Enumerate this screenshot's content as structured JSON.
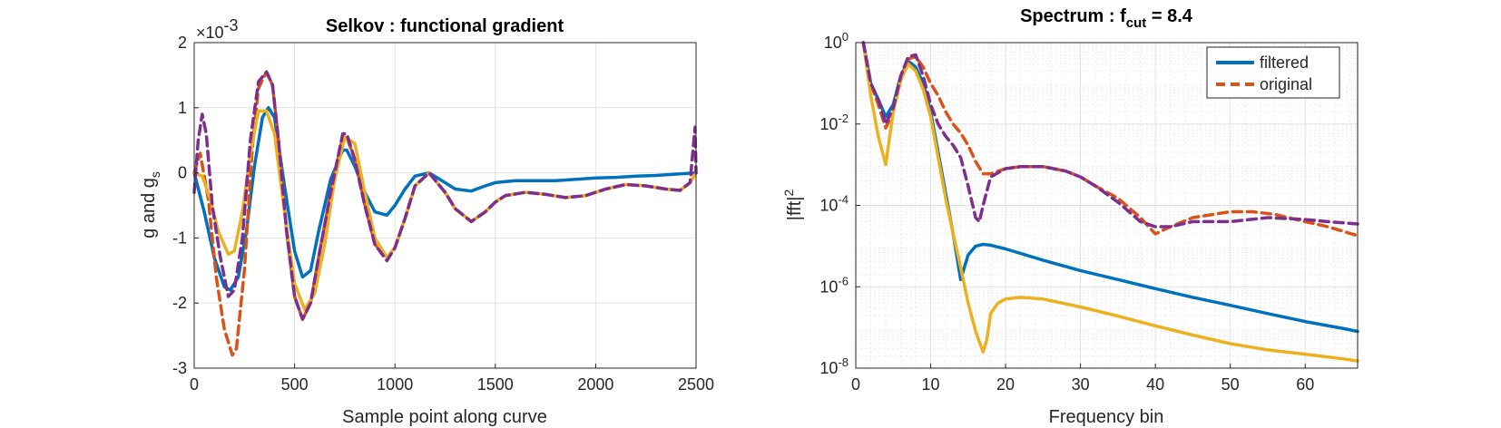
{
  "colors": {
    "blue": "#0072bd",
    "orange": "#d95319",
    "yellow": "#edb120",
    "purple": "#7e2f8e"
  },
  "chart_data": [
    {
      "type": "line",
      "title": "Selkov : functional gradient",
      "xlabel": "Sample point along curve",
      "ylabel_main": "g and g",
      "ylabel_sub": "s",
      "exponent_prefix": "×10",
      "exponent_power": "-3",
      "xlim": [
        0,
        2500
      ],
      "ylim": [
        -3,
        2
      ],
      "xticks": [
        0,
        500,
        1000,
        1500,
        2000,
        2500
      ],
      "xticklabels": [
        "0",
        "500",
        "1000",
        "1500",
        "2000",
        "2500"
      ],
      "yticks": [
        -3,
        -2,
        -1,
        0,
        1,
        2
      ],
      "yticklabels": [
        "-3",
        "-2",
        "-1",
        "0",
        "1",
        "2"
      ],
      "grid": true,
      "series": [
        {
          "color": "#0072bd",
          "style": "solid",
          "x": [
            0,
            50,
            100,
            150,
            180,
            220,
            260,
            300,
            340,
            370,
            400,
            450,
            500,
            540,
            580,
            620,
            680,
            740,
            760,
            800,
            850,
            900,
            960,
            1000,
            1050,
            1100,
            1170,
            1250,
            1300,
            1380,
            1450,
            1500,
            1600,
            1700,
            1800,
            1900,
            2000,
            2100,
            2200,
            2300,
            2400,
            2500
          ],
          "y": [
            0,
            -0.6,
            -1.3,
            -1.75,
            -1.8,
            -1.6,
            -0.9,
            0.1,
            0.85,
            1.0,
            0.85,
            -0.2,
            -1.2,
            -1.6,
            -1.5,
            -0.9,
            -0.1,
            0.35,
            0.35,
            0.1,
            -0.3,
            -0.6,
            -0.65,
            -0.5,
            -0.25,
            -0.05,
            0.0,
            -0.15,
            -0.25,
            -0.28,
            -0.2,
            -0.15,
            -0.12,
            -0.12,
            -0.12,
            -0.1,
            -0.08,
            -0.07,
            -0.05,
            -0.04,
            -0.02,
            0.0
          ]
        },
        {
          "color": "#d95319",
          "style": "dashed",
          "x": [
            0,
            30,
            70,
            110,
            150,
            190,
            210,
            250,
            290,
            320,
            360,
            390,
            420,
            460,
            500,
            540,
            580,
            620,
            680,
            740,
            760,
            800,
            850,
            900,
            960,
            1000,
            1050,
            1100,
            1170,
            1250,
            1300,
            1380,
            1450,
            1500,
            1550,
            1650,
            1750,
            1850,
            1950,
            2050,
            2150,
            2250,
            2350,
            2420,
            2470,
            2500
          ],
          "y": [
            0,
            0.3,
            -0.4,
            -1.6,
            -2.4,
            -2.8,
            -2.7,
            -1.5,
            0.4,
            1.3,
            1.55,
            1.35,
            0.5,
            -0.9,
            -1.9,
            -2.25,
            -2.0,
            -1.3,
            -0.3,
            0.55,
            0.55,
            0.2,
            -0.5,
            -1.1,
            -1.3,
            -1.15,
            -0.7,
            -0.2,
            0.0,
            -0.3,
            -0.55,
            -0.75,
            -0.6,
            -0.45,
            -0.35,
            -0.3,
            -0.33,
            -0.38,
            -0.35,
            -0.25,
            -0.18,
            -0.2,
            -0.25,
            -0.27,
            -0.15,
            0.0
          ]
        },
        {
          "color": "#edb120",
          "style": "solid",
          "x": [
            0,
            40,
            80,
            120,
            170,
            200,
            240,
            280,
            320,
            360,
            400,
            450,
            500,
            550,
            600,
            650,
            700,
            750,
            800,
            850,
            900,
            960,
            1000,
            1050,
            1100,
            1170,
            1250,
            1300,
            1380,
            1450,
            1500,
            1550,
            1650,
            1750,
            1850,
            1950,
            2050,
            2150,
            2250,
            2350,
            2420,
            2470,
            2500
          ],
          "y": [
            0,
            -0.05,
            -0.4,
            -0.9,
            -1.25,
            -1.2,
            -0.6,
            0.3,
            0.95,
            0.95,
            0.6,
            -0.6,
            -1.7,
            -2.1,
            -1.85,
            -1.1,
            -0.1,
            0.55,
            0.45,
            -0.3,
            -1.0,
            -1.3,
            -1.15,
            -0.7,
            -0.2,
            0.0,
            -0.3,
            -0.55,
            -0.75,
            -0.6,
            -0.45,
            -0.35,
            -0.3,
            -0.33,
            -0.38,
            -0.35,
            -0.25,
            -0.18,
            -0.2,
            -0.25,
            -0.27,
            -0.15,
            0.0
          ]
        },
        {
          "color": "#7e2f8e",
          "style": "dashed",
          "x": [
            0,
            20,
            40,
            60,
            90,
            130,
            170,
            200,
            240,
            280,
            320,
            360,
            390,
            420,
            460,
            500,
            540,
            580,
            620,
            680,
            740,
            760,
            800,
            850,
            900,
            960,
            1000,
            1050,
            1100,
            1170,
            1250,
            1300,
            1380,
            1450,
            1500,
            1550,
            1650,
            1750,
            1850,
            1950,
            2050,
            2150,
            2250,
            2350,
            2420,
            2470,
            2495,
            2500
          ],
          "y": [
            -0.3,
            0.5,
            0.9,
            0.6,
            -0.5,
            -1.3,
            -1.9,
            -1.8,
            -1.0,
            0.5,
            1.4,
            1.55,
            1.35,
            0.5,
            -0.9,
            -1.9,
            -2.25,
            -2.0,
            -1.3,
            -0.3,
            0.6,
            0.6,
            0.2,
            -0.5,
            -1.1,
            -1.35,
            -1.15,
            -0.7,
            -0.2,
            0.0,
            -0.3,
            -0.55,
            -0.75,
            -0.6,
            -0.45,
            -0.35,
            -0.3,
            -0.33,
            -0.38,
            -0.35,
            -0.25,
            -0.18,
            -0.2,
            -0.25,
            -0.27,
            -0.15,
            0.7,
            0.0
          ]
        }
      ]
    },
    {
      "type": "line",
      "title_main": "Spectrum : f",
      "title_sub": "cut",
      "title_suffix": " = 8.4",
      "xlabel": "Frequency bin",
      "ylabel_main": "|fft|",
      "ylabel_sup": "2",
      "xlim": [
        0,
        67
      ],
      "ylim_log10": [
        -8,
        0
      ],
      "yscale": "log",
      "xticks": [
        0,
        10,
        20,
        30,
        40,
        50,
        60
      ],
      "xticklabels": [
        "0",
        "10",
        "20",
        "30",
        "40",
        "50",
        "60"
      ],
      "yticks_log10": [
        -8,
        -6,
        -4,
        -2,
        0
      ],
      "ytick_base": "10",
      "ytick_exponents": [
        "-8",
        "-6",
        "-4",
        "-2",
        "0"
      ],
      "grid": true,
      "legend": {
        "position": "top-right",
        "entries": [
          "filtered",
          "original"
        ]
      },
      "series": [
        {
          "name": "filtered",
          "color": "#0072bd",
          "style": "solid",
          "x": [
            1,
            2,
            3,
            4,
            5,
            6,
            7,
            7.5,
            8,
            9,
            10,
            11,
            12,
            13,
            14,
            15,
            16,
            17,
            18,
            20,
            25,
            30,
            35,
            40,
            45,
            50,
            55,
            60,
            65,
            67
          ],
          "y": [
            1.0,
            0.1,
            0.04,
            0.015,
            0.03,
            0.15,
            0.35,
            0.3,
            0.25,
            0.1,
            0.02,
            0.002,
            0.0002,
            2e-05,
            1.5e-06,
            6e-06,
            1e-05,
            1.1e-05,
            1.05e-05,
            8.5e-06,
            4.5e-06,
            2.5e-06,
            1.5e-06,
            9e-07,
            5.5e-07,
            3.5e-07,
            2.2e-07,
            1.4e-07,
            9.5e-08,
            8e-08
          ]
        },
        {
          "name": "original",
          "color": "#d95319",
          "style": "dashed",
          "x": [
            1,
            2,
            3,
            4,
            5,
            6,
            7,
            8,
            9,
            10,
            11,
            12,
            13,
            14,
            15,
            16,
            17,
            18,
            20,
            22,
            25,
            28,
            30,
            32,
            35,
            38,
            40,
            42,
            45,
            50,
            53,
            56,
            60,
            63,
            67
          ],
          "y": [
            1.0,
            0.1,
            0.03,
            0.008,
            0.02,
            0.12,
            0.4,
            0.45,
            0.25,
            0.1,
            0.05,
            0.02,
            0.01,
            0.006,
            0.003,
            0.0012,
            0.0006,
            0.0006,
            0.0008,
            0.0009,
            0.0009,
            0.0007,
            0.0005,
            0.0003,
            0.00015,
            5e-05,
            2e-05,
            3e-05,
            5e-05,
            7e-05,
            7e-05,
            6e-05,
            4e-05,
            3e-05,
            1.8e-05
          ]
        },
        {
          "color": "#edb120",
          "style": "solid",
          "x": [
            1,
            2,
            3,
            4,
            5,
            6,
            7,
            8,
            9,
            10,
            11,
            12,
            13,
            14,
            15,
            16,
            17,
            17.5,
            18,
            19,
            20,
            22,
            25,
            30,
            35,
            40,
            45,
            50,
            55,
            60,
            65,
            67
          ],
          "y": [
            1.0,
            0.05,
            0.005,
            0.001,
            0.02,
            0.12,
            0.3,
            0.2,
            0.07,
            0.015,
            0.0015,
            0.00015,
            2e-05,
            3e-06,
            4e-07,
            8e-08,
            2.5e-08,
            5e-08,
            2.2e-07,
            4e-07,
            5e-07,
            5.5e-07,
            5e-07,
            3.2e-07,
            1.9e-07,
            1.1e-07,
            6.5e-08,
            4e-08,
            2.8e-08,
            2.2e-08,
            1.7e-08,
            1.5e-08
          ]
        },
        {
          "color": "#7e2f8e",
          "style": "dashed",
          "x": [
            1,
            2,
            3,
            4,
            5,
            6,
            7,
            8,
            9,
            10,
            11,
            12,
            13,
            14,
            15,
            16,
            16.5,
            17,
            18,
            20,
            22,
            25,
            28,
            30,
            32,
            35,
            38,
            40,
            42,
            45,
            50,
            55,
            60,
            63,
            67
          ],
          "y": [
            1.0,
            0.1,
            0.04,
            0.01,
            0.025,
            0.15,
            0.45,
            0.5,
            0.15,
            0.03,
            0.01,
            0.005,
            0.003,
            0.0015,
            0.0003,
            5e-05,
            4e-05,
            0.0001,
            0.0005,
            0.0008,
            0.0009,
            0.0009,
            0.0007,
            0.0005,
            0.0003,
            0.00012,
            4e-05,
            3e-05,
            3e-05,
            4e-05,
            4e-05,
            5e-05,
            4.5e-05,
            4e-05,
            3.5e-05
          ]
        }
      ]
    }
  ]
}
